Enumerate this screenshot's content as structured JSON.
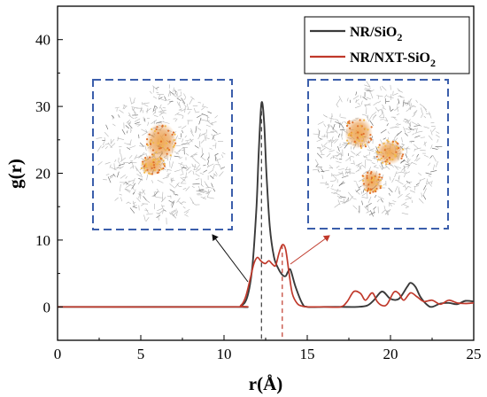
{
  "chart_data": {
    "type": "line",
    "xlabel": "r(Å)",
    "ylabel": "g(r)",
    "xlim": [
      0,
      25
    ],
    "ylim": [
      -5,
      45
    ],
    "xticks": [
      0,
      5,
      10,
      15,
      20,
      25
    ],
    "yticks": [
      0,
      10,
      20,
      30,
      40
    ],
    "xtick_labels": [
      "0",
      "5",
      "10",
      "15",
      "20",
      "25"
    ],
    "ytick_labels": [
      "0",
      "10",
      "20",
      "30",
      "40"
    ],
    "grid": false,
    "legend_position": "top-right",
    "series": [
      {
        "name": "NR/SiO2",
        "color": "#3a3a3a",
        "x": [
          0,
          10.5,
          11.0,
          11.4,
          11.7,
          11.95,
          12.1,
          12.25,
          12.4,
          12.55,
          12.75,
          13.0,
          13.25,
          13.5,
          13.7,
          13.85,
          14.0,
          14.3,
          14.7,
          15.0,
          16.0,
          17.0,
          18.0,
          18.6,
          19.0,
          19.5,
          20.0,
          20.5,
          21.0,
          21.2,
          21.5,
          21.8,
          22.2,
          22.5,
          23.0,
          23.5,
          24.0,
          24.5,
          25.0
        ],
        "y": [
          0,
          0,
          0.1,
          1.5,
          6.0,
          15.0,
          24.0,
          30.5,
          28.0,
          20.0,
          12.0,
          7.5,
          5.8,
          4.8,
          4.6,
          5.3,
          5.5,
          3.0,
          0.5,
          0,
          0,
          0,
          0,
          0.2,
          1.0,
          2.3,
          1.2,
          1.2,
          3.0,
          3.6,
          3.0,
          1.5,
          0.3,
          0,
          0.5,
          0.6,
          0.4,
          0.9,
          0.8
        ]
      },
      {
        "name": "NR/NXT-SiO2",
        "color": "#c0392b",
        "x": [
          0,
          10.5,
          11.0,
          11.3,
          11.6,
          11.8,
          12.0,
          12.2,
          12.35,
          12.5,
          12.7,
          12.9,
          13.1,
          13.3,
          13.5,
          13.7,
          13.9,
          14.1,
          14.4,
          14.7,
          15.0,
          16.0,
          17.0,
          17.4,
          17.8,
          18.2,
          18.5,
          18.9,
          19.2,
          19.5,
          19.8,
          20.2,
          20.5,
          20.8,
          21.2,
          21.6,
          22.0,
          22.5,
          23.0,
          23.5,
          24.0,
          24.5,
          25.0
        ],
        "y": [
          0,
          0,
          0.2,
          1.5,
          4.5,
          6.5,
          7.4,
          6.9,
          6.6,
          6.5,
          6.9,
          6.4,
          6.2,
          8.0,
          9.3,
          8.6,
          5.2,
          2.0,
          0.5,
          0.1,
          0,
          0,
          0,
          0.8,
          2.3,
          2.0,
          1.0,
          2.1,
          0.8,
          0.2,
          0.4,
          2.2,
          2.0,
          1.0,
          2.1,
          1.5,
          0.8,
          1.0,
          0.4,
          1.0,
          0.6,
          0.5,
          0.6
        ]
      }
    ],
    "annotations": {
      "peak_markers": [
        {
          "x": 12.25,
          "y": 30.5,
          "color": "#3a3a3a"
        },
        {
          "x": 13.5,
          "y": 9.3,
          "color": "#c0392b"
        }
      ]
    }
  },
  "legend": {
    "entries": [
      {
        "main": "NR/SiO",
        "sub": "2",
        "color": "#3a3a3a"
      },
      {
        "main": "NR/NXT-SiO",
        "sub": "2",
        "color": "#c0392b"
      }
    ]
  },
  "insets": [
    {
      "name": "NR/SiO2 snapshot",
      "border_color": "#3b5eab"
    },
    {
      "name": "NR/NXT-SiO2 snapshot",
      "border_color": "#3b5eab"
    }
  ]
}
